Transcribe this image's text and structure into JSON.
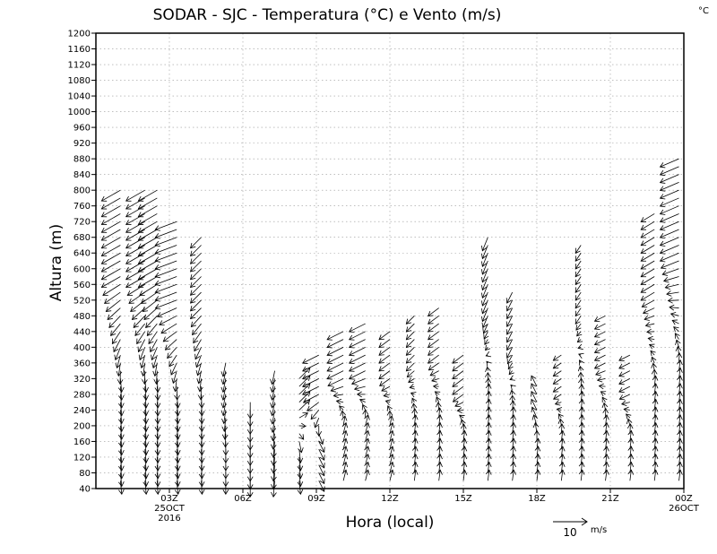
{
  "chart_data": {
    "type": "wind-barb-time-height",
    "title": "SODAR - SJC - Temperatura (°C) e Vento (m/s)",
    "corner_unit": "°C",
    "xlabel": "Hora (local)",
    "ylabel": "Altura (m)",
    "ylim": [
      40,
      1200
    ],
    "y_ticks": [
      40,
      80,
      120,
      160,
      200,
      240,
      280,
      320,
      360,
      400,
      440,
      480,
      520,
      560,
      600,
      640,
      680,
      720,
      760,
      800,
      840,
      880,
      920,
      960,
      1000,
      1040,
      1080,
      1120,
      1160,
      1200
    ],
    "xlim_hours": [
      0,
      24
    ],
    "x_ticks": [
      {
        "hour": 3,
        "lines": [
          "03Z",
          "25OCT",
          "2016"
        ]
      },
      {
        "hour": 6,
        "lines": [
          "06Z"
        ]
      },
      {
        "hour": 9,
        "lines": [
          "09Z"
        ]
      },
      {
        "hour": 12,
        "lines": [
          "12Z"
        ]
      },
      {
        "hour": 15,
        "lines": [
          "15Z"
        ]
      },
      {
        "hour": 18,
        "lines": [
          "18Z"
        ]
      },
      {
        "hour": 21,
        "lines": [
          "21Z"
        ]
      },
      {
        "hour": 24,
        "lines": [
          "00Z",
          "26OCT"
        ]
      }
    ],
    "grid": true,
    "reference_vector": {
      "speed": 10,
      "label": "10",
      "unit": "m/s"
    },
    "series": [
      {
        "hour": 1.0,
        "top": 800,
        "u_low": 0.5,
        "v_low": -5,
        "u_high": -7,
        "v_high": -4
      },
      {
        "hour": 2.0,
        "top": 800,
        "u_low": 0.5,
        "v_low": -5,
        "u_high": -7,
        "v_high": -4
      },
      {
        "hour": 2.5,
        "top": 800,
        "u_low": 0.3,
        "v_low": -5,
        "u_high": -7,
        "v_high": -4
      },
      {
        "hour": 3.3,
        "top": 720,
        "u_low": 0.5,
        "v_low": -5,
        "u_high": -8,
        "v_high": -3
      },
      {
        "hour": 4.3,
        "top": 680,
        "u_low": 0.3,
        "v_low": -5,
        "u_high": -4,
        "v_high": -4
      },
      {
        "hour": 5.3,
        "top": 360,
        "u_low": 0,
        "v_low": -5,
        "u_high": -1,
        "v_high": -5
      },
      {
        "hour": 6.3,
        "top": 260,
        "u_low": 0,
        "v_low": -6,
        "u_high": 0,
        "v_high": -6
      },
      {
        "hour": 7.3,
        "top": 340,
        "u_low": -0.5,
        "v_low": -6,
        "u_high": -1,
        "v_high": -5
      },
      {
        "hour": 8.3,
        "top": 320,
        "u_low": 0.5,
        "v_low": -5,
        "u_high": 4,
        "v_high": 4
      },
      {
        "hour": 9.1,
        "top": 380,
        "u_low": 2,
        "v_low": -4,
        "u_high": -6,
        "v_high": -3
      },
      {
        "hour": 10.1,
        "top": 440,
        "u_low": 1,
        "v_low": 4,
        "u_high": -6,
        "v_high": -3
      },
      {
        "hour": 11.0,
        "top": 460,
        "u_low": 1,
        "v_low": 4,
        "u_high": -6,
        "v_high": -3
      },
      {
        "hour": 12.0,
        "top": 440,
        "u_low": 1,
        "v_low": 4,
        "u_high": -4,
        "v_high": -3
      },
      {
        "hour": 13.0,
        "top": 480,
        "u_low": 0.5,
        "v_low": 4,
        "u_high": -3,
        "v_high": -3
      },
      {
        "hour": 14.0,
        "top": 500,
        "u_low": 0.5,
        "v_low": 4,
        "u_high": -4,
        "v_high": -3
      },
      {
        "hour": 15.0,
        "top": 380,
        "u_low": 0.5,
        "v_low": 4,
        "u_high": -4,
        "v_high": -3
      },
      {
        "hour": 16.0,
        "top": 680,
        "u_low": 0.5,
        "v_low": 4,
        "u_high": -2,
        "v_high": -5
      },
      {
        "hour": 17.0,
        "top": 540,
        "u_low": 0.5,
        "v_low": 4,
        "u_high": -2,
        "v_high": -4
      },
      {
        "hour": 18.0,
        "top": 300,
        "u_low": 0.5,
        "v_low": 4,
        "u_high": -2,
        "v_high": 4
      },
      {
        "hour": 19.0,
        "top": 380,
        "u_low": 0.5,
        "v_low": 4,
        "u_high": -3,
        "v_high": -2
      },
      {
        "hour": 19.8,
        "top": 660,
        "u_low": 0.5,
        "v_low": 4,
        "u_high": -2,
        "v_high": -3
      },
      {
        "hour": 20.8,
        "top": 480,
        "u_low": 0.5,
        "v_low": 4,
        "u_high": -4,
        "v_high": -2
      },
      {
        "hour": 21.8,
        "top": 380,
        "u_low": 0.5,
        "v_low": 4,
        "u_high": -4,
        "v_high": -2
      },
      {
        "hour": 22.8,
        "top": 740,
        "u_low": 0.5,
        "v_low": 4,
        "u_high": -5,
        "v_high": -3
      },
      {
        "hour": 23.8,
        "top": 880,
        "u_low": 0.5,
        "v_low": 4,
        "u_high": -7,
        "v_high": -3
      }
    ]
  }
}
